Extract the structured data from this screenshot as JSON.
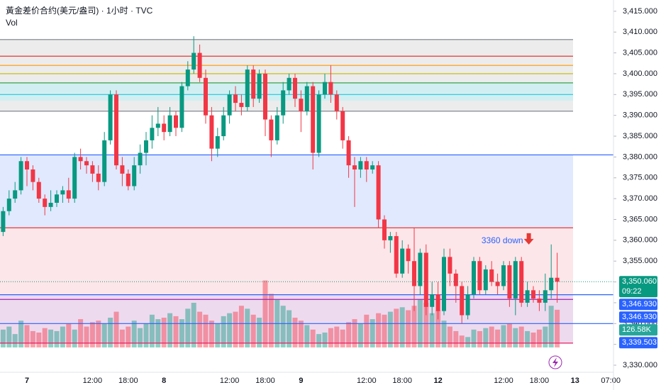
{
  "chart_data": {
    "type": "candlestick",
    "title": "黃金差价合约(美元/盎司) · 1小时 · TVC",
    "volume_title": "Vol",
    "up_color": "#089981",
    "down_color": "#f23645",
    "ylim": [
      3328.3,
      3417.7
    ],
    "yticks": [
      {
        "value": 3330,
        "label": "3,330.000"
      },
      {
        "value": 3335,
        "label": "3,335.000"
      },
      {
        "value": 3340,
        "label": "3,340.000"
      },
      {
        "value": 3345,
        "label": "3,345.000"
      },
      {
        "value": 3350,
        "label": "3,350.000"
      },
      {
        "value": 3355,
        "label": "3,355.000"
      },
      {
        "value": 3360,
        "label": "3,360.000"
      },
      {
        "value": 3365,
        "label": "3,365.000"
      },
      {
        "value": 3370,
        "label": "3,370.000"
      },
      {
        "value": 3375,
        "label": "3,375.000"
      },
      {
        "value": 3380,
        "label": "3,380.000"
      },
      {
        "value": 3385,
        "label": "3,385.000"
      },
      {
        "value": 3390,
        "label": "3,390.000"
      },
      {
        "value": 3395,
        "label": "3,395.000"
      },
      {
        "value": 3400,
        "label": "3,400.000"
      },
      {
        "value": 3405,
        "label": "3,405.000"
      },
      {
        "value": 3410,
        "label": "3,410.000"
      },
      {
        "value": 3415,
        "label": "3,415.000"
      }
    ],
    "x_labels": [
      {
        "index": 4,
        "label": "7"
      },
      {
        "index": 15,
        "label": "12:00"
      },
      {
        "index": 21,
        "label": "18:00"
      },
      {
        "index": 27,
        "label": "8"
      },
      {
        "index": 38,
        "label": "12:00"
      },
      {
        "index": 44,
        "label": "18:00"
      },
      {
        "index": 50,
        "label": "9"
      },
      {
        "index": 61,
        "label": "12:00"
      },
      {
        "index": 67,
        "label": "18:00"
      },
      {
        "index": 73,
        "label": "12"
      },
      {
        "index": 84,
        "label": "12:00"
      },
      {
        "index": 90,
        "label": "18:00"
      },
      {
        "index": 96,
        "label": "13"
      },
      {
        "index": 102,
        "label": "07:00"
      }
    ],
    "open": [
      3362,
      3367,
      3370,
      3372,
      3379,
      3377,
      3374,
      3370,
      3368,
      3369,
      3371,
      3372,
      3370,
      3380,
      3379,
      3378,
      3376,
      3374,
      3384,
      3395,
      3378,
      3376,
      3373,
      3378,
      3381,
      3384,
      3387,
      3388,
      3386,
      3390,
      3387,
      3397,
      3401,
      3405,
      3399,
      3390,
      3382,
      3385,
      3390,
      3395,
      3393,
      3392,
      3401,
      3394,
      3400,
      3389,
      3384,
      3390,
      3396,
      3399,
      3394,
      3391,
      3397,
      3381,
      3395,
      3398,
      3395,
      3391,
      3384,
      3378,
      3377,
      3379,
      3377,
      3378,
      3365,
      3360,
      3361,
      3352,
      3358,
      3355,
      3349,
      3357,
      3344,
      3347,
      3343,
      3356,
      3352,
      3349,
      3342,
      3347,
      3355,
      3348,
      3353,
      3350,
      3349,
      3354,
      3346,
      3355,
      3345,
      3348,
      3346,
      3345,
      3348,
      3351
    ],
    "high": [
      3368,
      3372,
      3374,
      3380,
      3380,
      3378,
      3375,
      3371,
      3372,
      3372,
      3373,
      3375,
      3381,
      3382,
      3380,
      3379,
      3378,
      3386,
      3396,
      3396,
      3380,
      3377,
      3380,
      3383,
      3386,
      3390,
      3392,
      3390,
      3392,
      3391,
      3398,
      3403,
      3409,
      3407,
      3401,
      3392,
      3387,
      3392,
      3396,
      3397,
      3395,
      3402,
      3402,
      3401,
      3401,
      3390,
      3392,
      3398,
      3400,
      3400,
      3396,
      3398,
      3398,
      3396,
      3400,
      3402,
      3396,
      3392,
      3385,
      3380,
      3380,
      3380,
      3379,
      3379,
      3366,
      3362,
      3362,
      3360,
      3359,
      3363,
      3358,
      3359,
      3350,
      3350,
      3358,
      3358,
      3353,
      3350,
      3349,
      3356,
      3356,
      3354,
      3355,
      3352,
      3355,
      3355,
      3356,
      3356,
      3350,
      3349,
      3348,
      3352,
      3359,
      3357
    ],
    "low": [
      3361,
      3366,
      3369,
      3371,
      3373,
      3372,
      3369,
      3366,
      3367,
      3368,
      3369,
      3369,
      3369,
      3377,
      3376,
      3374,
      3372,
      3373,
      3383,
      3377,
      3373,
      3372,
      3372,
      3376,
      3378,
      3382,
      3385,
      3384,
      3385,
      3385,
      3386,
      3396,
      3400,
      3398,
      3388,
      3379,
      3380,
      3384,
      3388,
      3391,
      3390,
      3391,
      3392,
      3393,
      3385,
      3380,
      3383,
      3388,
      3395,
      3392,
      3386,
      3390,
      3377,
      3380,
      3394,
      3393,
      3389,
      3382,
      3375,
      3368,
      3375,
      3374,
      3376,
      3363,
      3358,
      3357,
      3351,
      3351,
      3352,
      3343,
      3347,
      3342,
      3342,
      3341,
      3342,
      3349,
      3345,
      3340,
      3341,
      3346,
      3347,
      3347,
      3349,
      3347,
      3348,
      3344,
      3342,
      3344,
      3344,
      3345,
      3343,
      3343,
      3346,
      3345
    ],
    "close": [
      3367,
      3370,
      3372,
      3379,
      3377,
      3374,
      3370,
      3368,
      3369,
      3371,
      3372,
      3370,
      3380,
      3379,
      3378,
      3376,
      3374,
      3384,
      3395,
      3378,
      3376,
      3373,
      3378,
      3381,
      3384,
      3387,
      3388,
      3386,
      3390,
      3387,
      3397,
      3401,
      3405,
      3399,
      3390,
      3382,
      3385,
      3390,
      3395,
      3393,
      3392,
      3401,
      3394,
      3400,
      3389,
      3384,
      3390,
      3396,
      3399,
      3394,
      3391,
      3397,
      3381,
      3395,
      3398,
      3395,
      3391,
      3384,
      3378,
      3377,
      3379,
      3377,
      3378,
      3365,
      3360,
      3361,
      3352,
      3358,
      3355,
      3349,
      3357,
      3344,
      3347,
      3343,
      3356,
      3352,
      3349,
      3342,
      3347,
      3355,
      3348,
      3353,
      3350,
      3349,
      3354,
      3346,
      3355,
      3345,
      3348,
      3346,
      3345,
      3348,
      3351,
      3350.06
    ],
    "volume": [
      60,
      70,
      45,
      90,
      75,
      55,
      50,
      65,
      60,
      55,
      70,
      80,
      60,
      95,
      70,
      85,
      90,
      80,
      100,
      120,
      60,
      70,
      90,
      65,
      80,
      110,
      95,
      100,
      115,
      105,
      95,
      130,
      150,
      120,
      110,
      90,
      80,
      105,
      115,
      120,
      140,
      130,
      110,
      100,
      225,
      180,
      160,
      140,
      125,
      100,
      90,
      75,
      60,
      45,
      50,
      65,
      70,
      60,
      85,
      95,
      80,
      110,
      95,
      115,
      110,
      120,
      130,
      135,
      125,
      140,
      160,
      150,
      115,
      125,
      90,
      70,
      55,
      40,
      35,
      60,
      55,
      65,
      70,
      60,
      75,
      80,
      65,
      70,
      55,
      50,
      60,
      70,
      140,
      126.58
    ],
    "volume_label": {
      "value": 126.58,
      "label": "126.58K",
      "color": "#26a69a"
    },
    "zones": [
      {
        "from": 3391,
        "to": 3408.2,
        "color": "#e6e6e6"
      },
      {
        "from": 3393.5,
        "to": 3398,
        "color": "#c8f0f4"
      },
      {
        "from": 3363,
        "to": 3380.5,
        "color": "#d6e2fd"
      },
      {
        "from": 3335.3,
        "to": 3363,
        "color": "#fcdde1"
      },
      {
        "from": 3335.3,
        "to": 3346.93,
        "color": "#e8d6ef"
      }
    ],
    "levels": [
      {
        "value": 3408.2,
        "color": "#787b86",
        "full": false
      },
      {
        "value": 3404.2,
        "color": "#e53935",
        "full": false
      },
      {
        "value": 3402,
        "color": "#ff9800",
        "full": false
      },
      {
        "value": 3400,
        "color": "#c6b800",
        "full": false
      },
      {
        "value": 3397.8,
        "color": "#43a047",
        "full": false
      },
      {
        "value": 3395,
        "color": "#26c6da",
        "full": false
      },
      {
        "value": 3391,
        "color": "#787b86",
        "full": false
      },
      {
        "value": 3380.5,
        "color": "#2962ff",
        "full": true
      },
      {
        "value": 3363,
        "color": "#e53935",
        "full": false
      },
      {
        "value": 3346.93,
        "color": "#2962ff",
        "full": true
      },
      {
        "value": 3345.8,
        "color": "#9c27b0",
        "full": false
      },
      {
        "value": 3340,
        "color": "#2962ff",
        "full": true
      },
      {
        "value": 3335.3,
        "color": "#e91e63",
        "full": false
      }
    ],
    "price_labels": [
      {
        "value": 3350.06,
        "label": "3,350.060",
        "sub": "09:22",
        "color": "#089981"
      },
      {
        "value": 3346.93,
        "label": "3,346.930",
        "color": "#2962ff"
      },
      {
        "value": 3346.93,
        "label": "3,346.930",
        "color": "#2962ff"
      },
      {
        "value": 3339.503,
        "label": "3,339.503",
        "color": "#2962ff"
      }
    ],
    "annotation": {
      "text": "3360 down",
      "value": 3360,
      "index": 88,
      "color": "#2962ff",
      "arrow_color": "#e53935"
    }
  }
}
